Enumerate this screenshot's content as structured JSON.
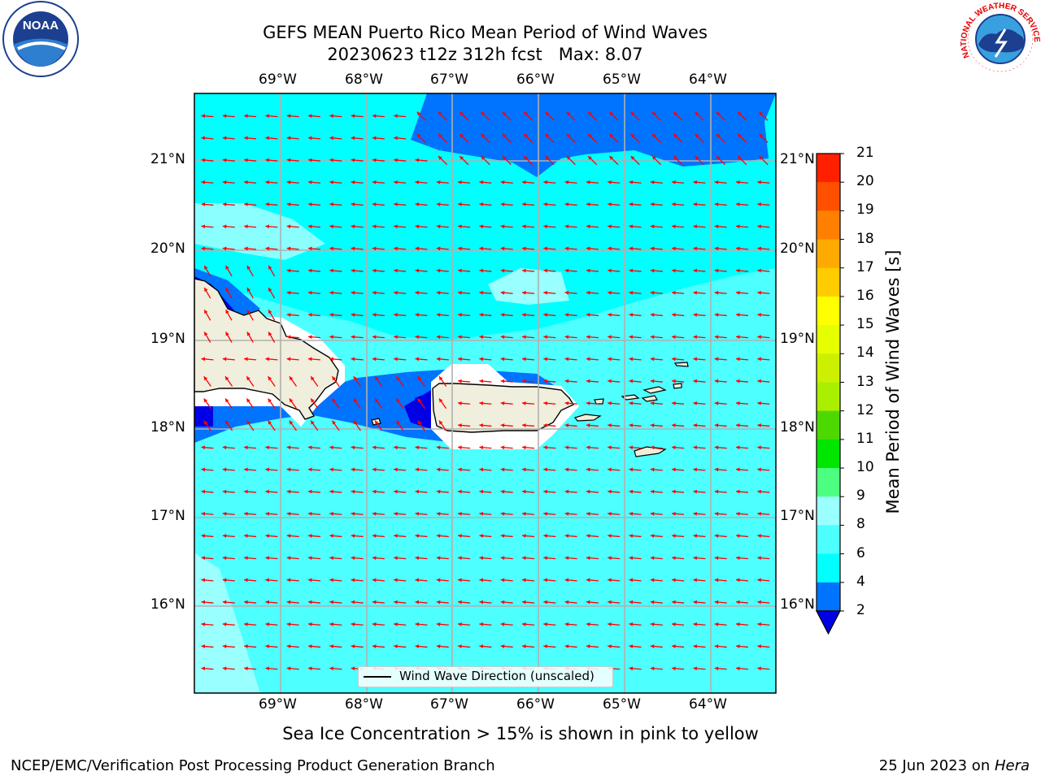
{
  "title": {
    "line1": "GEFS MEAN Puerto Rico Mean Period of Wind Waves",
    "line2": "20230623 t12z 312h fcst   Max: 8.07"
  },
  "axes": {
    "lon_labels": [
      "69°W",
      "68°W",
      "67°W",
      "66°W",
      "65°W",
      "64°W"
    ],
    "lat_labels": [
      "21°N",
      "20°N",
      "19°N",
      "18°N",
      "17°N",
      "16°N"
    ]
  },
  "colorbar": {
    "label": "Mean Period of Wind Waves [s]",
    "ticks": [
      "2",
      "4",
      "6",
      "8",
      "9",
      "10",
      "11",
      "12",
      "13",
      "14",
      "15",
      "16",
      "17",
      "18",
      "19",
      "20",
      "21"
    ],
    "colors": {
      "lt2": "#0000e6",
      "2-4": "#0073ff",
      "4-6": "#00ffff",
      "6-8": "#4dffff",
      "8-9": "#99ffff",
      "9-10": "#4dff80",
      "10-11": "#00e600",
      "11-12": "#4dd900",
      "12-13": "#aaee00",
      "13-14": "#ccf000",
      "14-15": "#e6ff00",
      "15-16": "#ffff00",
      "16-17": "#ffcc00",
      "17-18": "#ffaa00",
      "18-19": "#ff8000",
      "19-20": "#ff5000",
      "20-21": "#ff2000",
      "gt21": "#ff0000"
    }
  },
  "legend": {
    "label": "Wind Wave Direction (unscaled)"
  },
  "caption": "Sea Ice Concentration > 15% is shown in pink to yellow",
  "footer": {
    "left": "NCEP/EMC/Verification Post Processing Product Generation Branch",
    "right_date": "25 Jun 2023 on ",
    "right_machine": "Hera"
  },
  "logos": {
    "noaa": "NOAA",
    "nws": "NATIONAL WEATHER SERVICE"
  },
  "map_colors": {
    "land": "#f0eedc",
    "arrow": "#ff0000",
    "grid": "#b0b0b0"
  }
}
